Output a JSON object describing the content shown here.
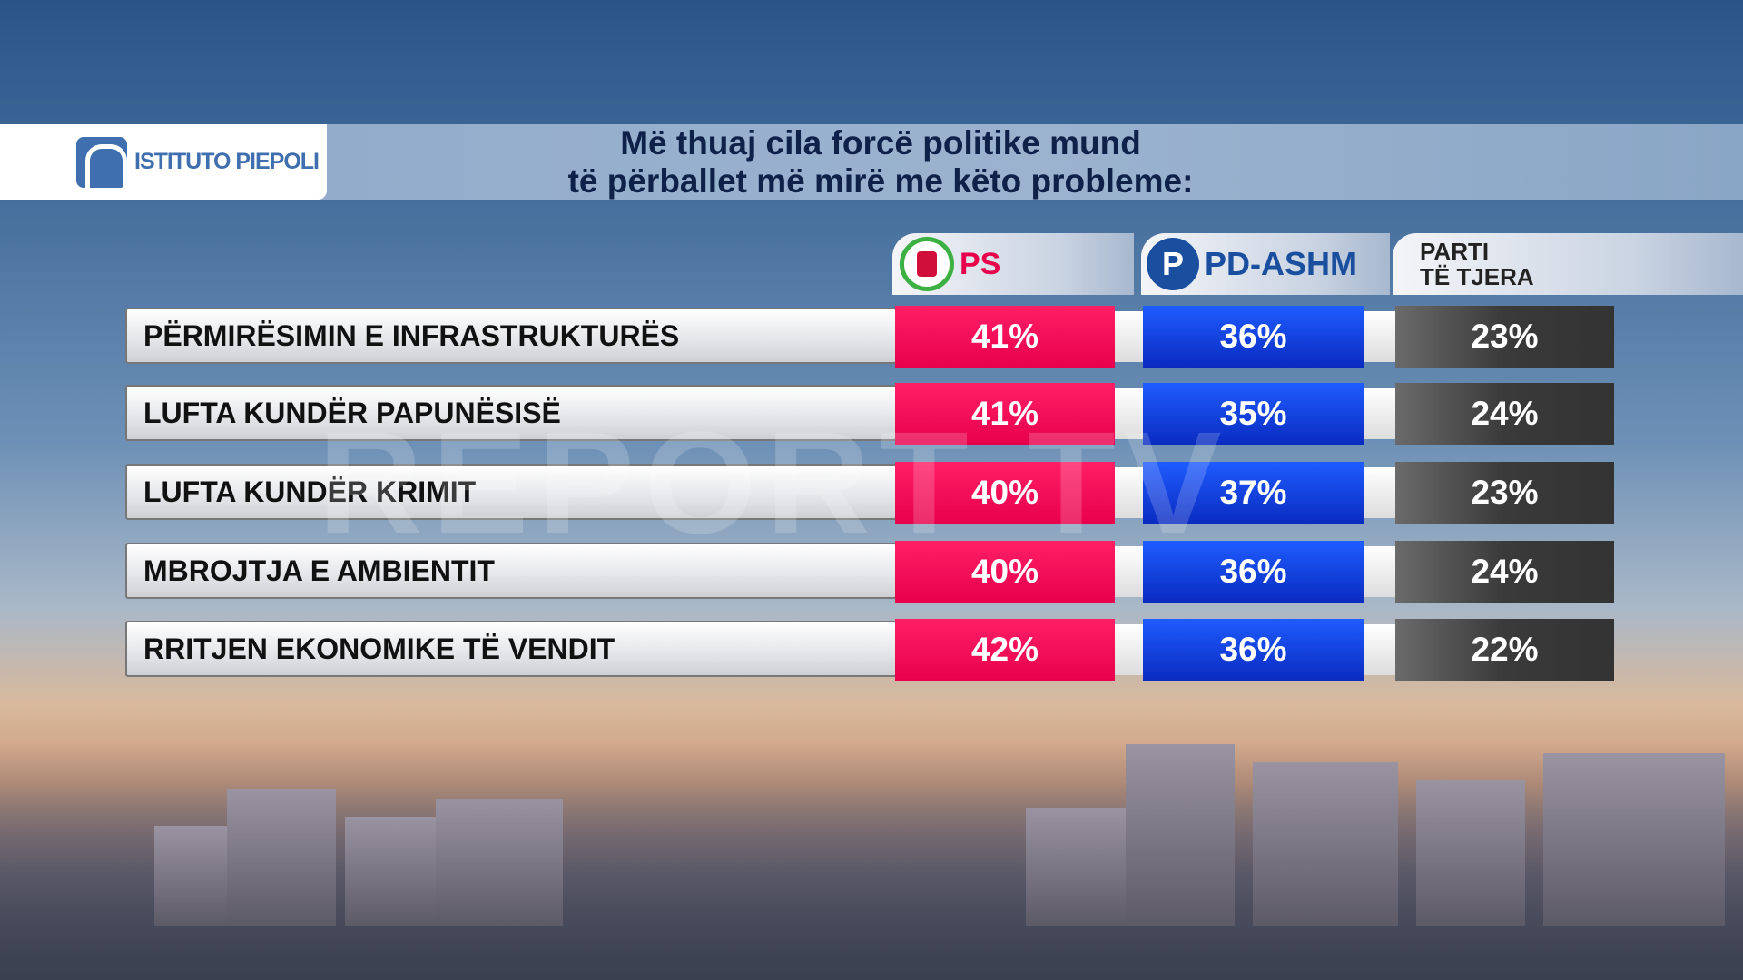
{
  "header": {
    "logo_text": "ISTITUTO PIEPOLI",
    "title_line1": "Më thuaj cila forcë politike mund",
    "title_line2": "të përballet më mirë me këto probleme:"
  },
  "columns": [
    {
      "label": "PS",
      "color": "#e8004c"
    },
    {
      "label": "PD-ASHM",
      "color": "#0a2bc0"
    },
    {
      "label_line1": "PARTI",
      "label_line2": "TË TJERA",
      "color": "#3a3a3a"
    }
  ],
  "watermark": "REPORT TV",
  "rows": [
    {
      "label": "PËRMIRËSIMIN E INFRASTRUKTURËS",
      "ps": "41%",
      "pd": "36%",
      "other": "23%"
    },
    {
      "label": "LUFTA KUNDËR PAPUNËSISË",
      "ps": "41%",
      "pd": "35%",
      "other": "24%"
    },
    {
      "label": "LUFTA KUNDËR KRIMIT",
      "ps": "40%",
      "pd": "37%",
      "other": "23%"
    },
    {
      "label": "MBROJTJA E AMBIENTIT",
      "ps": "40%",
      "pd": "36%",
      "other": "24%"
    },
    {
      "label": "RRITJEN EKONOMIKE TË VENDIT",
      "ps": "42%",
      "pd": "36%",
      "other": "22%"
    }
  ]
}
